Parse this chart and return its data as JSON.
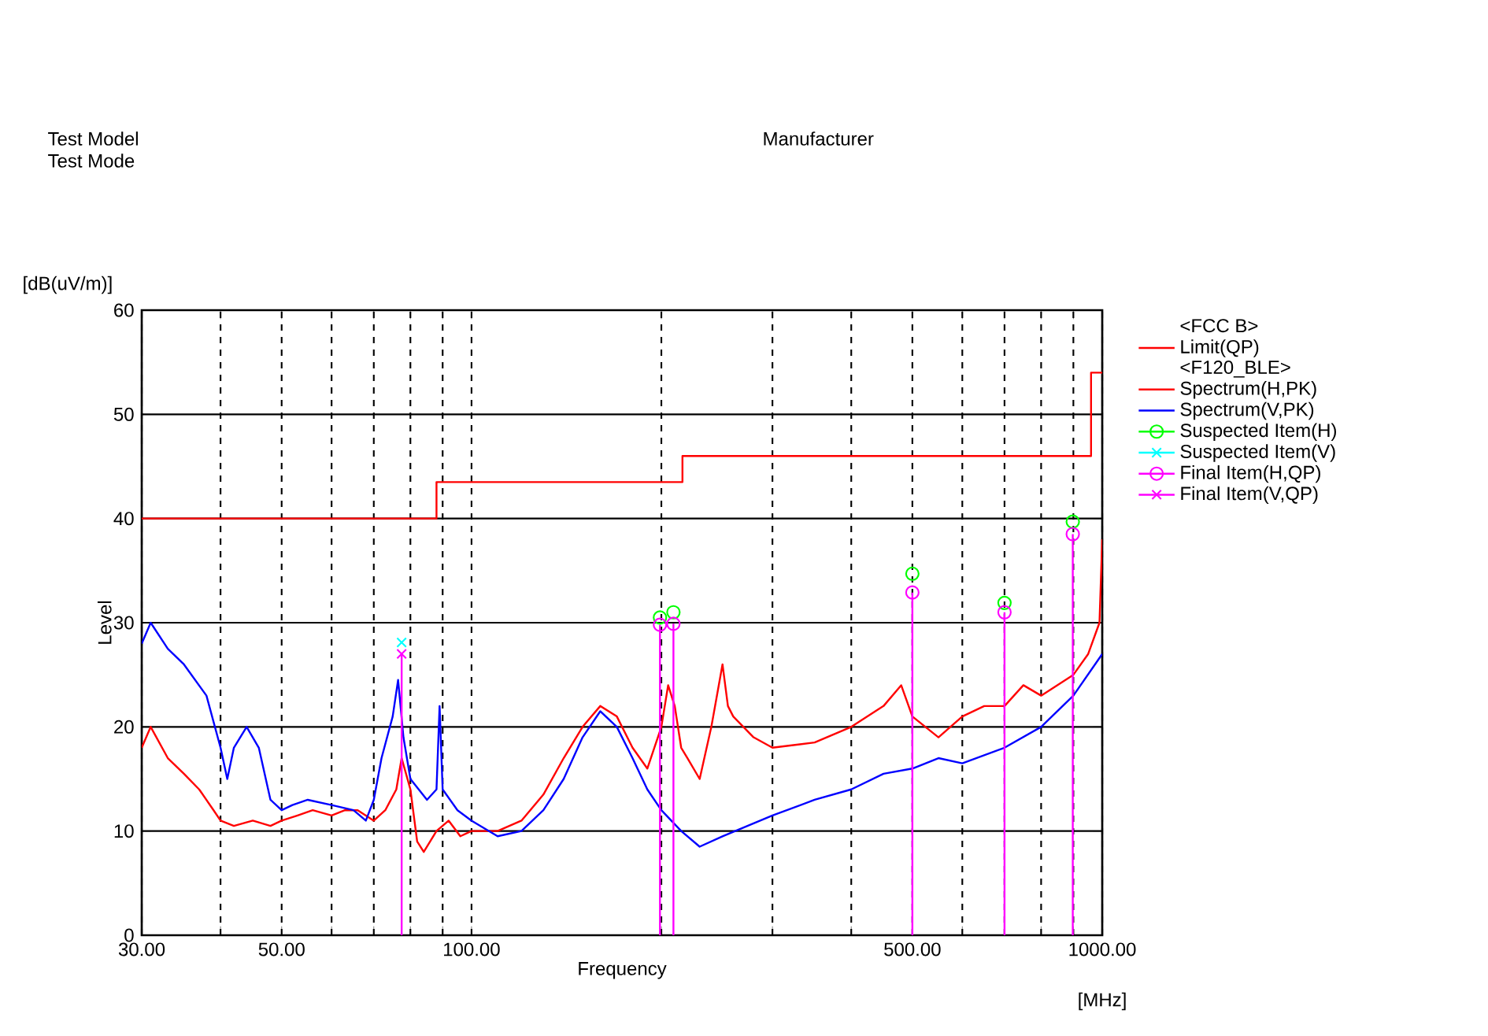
{
  "chart_data": {
    "type": "line",
    "xlabel": "Frequency",
    "ylabel": "Level",
    "log": "x",
    "grid": true,
    "legend": "right",
    "xlim": [
      30,
      1000
    ],
    "ylim": [
      0,
      60
    ],
    "xticks": [
      {
        "value": 30,
        "label": "30.00"
      },
      {
        "value": 40,
        "label": null
      },
      {
        "value": 50,
        "label": "50.00"
      },
      {
        "value": 60,
        "label": null
      },
      {
        "value": 70,
        "label": null
      },
      {
        "value": 80,
        "label": null
      },
      {
        "value": 90,
        "label": null
      },
      {
        "value": 100,
        "label": "100.00"
      },
      {
        "value": 200,
        "label": null
      },
      {
        "value": 300,
        "label": null
      },
      {
        "value": 400,
        "label": null
      },
      {
        "value": 500,
        "label": "500.00"
      },
      {
        "value": 600,
        "label": null
      },
      {
        "value": 700,
        "label": null
      },
      {
        "value": 800,
        "label": null
      },
      {
        "value": 900,
        "label": null
      },
      {
        "value": 1000,
        "label": "1000.00"
      }
    ],
    "yticks": [
      0,
      10,
      20,
      30,
      40,
      50,
      60
    ],
    "annotations": [
      "[dB(uV/m)]",
      "[MHz]",
      "Test Model",
      "Test Mode",
      "Manufacturer",
      "<FCC B>",
      "<F120_BLE>"
    ],
    "series": [
      {
        "name": "Limit(QP)",
        "type": "step",
        "color": "#ff0000",
        "marker": "none",
        "x": [
          30,
          88,
          216,
          960,
          1000
        ],
        "values": [
          40,
          43.5,
          46,
          54,
          54
        ]
      },
      {
        "name": "Spectrum(H,PK)",
        "color": "#ff0000",
        "marker": "none",
        "x": [
          30,
          31,
          33,
          35,
          37,
          39,
          40,
          42,
          45,
          48,
          50,
          53,
          56,
          60,
          63,
          66,
          70,
          73,
          76,
          77.5,
          80,
          82,
          84,
          88,
          92,
          96,
          100,
          110,
          120,
          130,
          140,
          150,
          160,
          170,
          180,
          190,
          200,
          205,
          210,
          215,
          220,
          230,
          240,
          250,
          255,
          260,
          280,
          300,
          350,
          400,
          450,
          480,
          500,
          550,
          600,
          650,
          700,
          750,
          800,
          900,
          950,
          990,
          1000
        ],
        "values": [
          18,
          20,
          17,
          15.5,
          14,
          12,
          11,
          10.5,
          11,
          10.5,
          11,
          11.5,
          12,
          11.5,
          12,
          12,
          11,
          12,
          14,
          17,
          14,
          9,
          8,
          10,
          11,
          9.5,
          10,
          10,
          11,
          13.5,
          17,
          20,
          22,
          21,
          18,
          16,
          20,
          24,
          22,
          18,
          17,
          15,
          20,
          26,
          22,
          21,
          19,
          18,
          18.5,
          20,
          22,
          24,
          21,
          19,
          21,
          22,
          22,
          24,
          23,
          25,
          27,
          30,
          38
        ]
      },
      {
        "name": "Spectrum(V,PK)",
        "color": "#0000ff",
        "marker": "none",
        "x": [
          30,
          31,
          33,
          35,
          38,
          40,
          41,
          42,
          44,
          46,
          48,
          50,
          52,
          55,
          60,
          65,
          68,
          70,
          72,
          75,
          76.5,
          78,
          80,
          85,
          88,
          89,
          90,
          95,
          100,
          110,
          120,
          130,
          140,
          150,
          160,
          170,
          180,
          190,
          200,
          215,
          230,
          250,
          300,
          350,
          400,
          450,
          500,
          550,
          600,
          700,
          800,
          900,
          1000
        ],
        "values": [
          28,
          30,
          27.5,
          26,
          23,
          18,
          15,
          18,
          20,
          18,
          13,
          12,
          12.5,
          13,
          12.5,
          12,
          11,
          13,
          17,
          21,
          24.5,
          19,
          15,
          13,
          14,
          22,
          14,
          12,
          11,
          9.5,
          10,
          12,
          15,
          19,
          21.5,
          20,
          17,
          14,
          12,
          10,
          8.5,
          9.5,
          11.5,
          13,
          14,
          15.5,
          16,
          17,
          16.5,
          18,
          20,
          23,
          27
        ]
      },
      {
        "name": "Suspected Item(H)",
        "type": "scatter",
        "color": "#00ff00",
        "marker": "circle",
        "x": [
          199,
          209,
          500,
          700,
          898
        ],
        "values": [
          30.5,
          31,
          34.7,
          31.9,
          39.7
        ]
      },
      {
        "name": "Suspected Item(V)",
        "type": "scatter",
        "color": "#00ffff",
        "marker": "cross",
        "x": [
          77.5
        ],
        "values": [
          28.1
        ]
      },
      {
        "name": "Final Item(H,QP)",
        "type": "lollipop",
        "color": "#ff00ff",
        "marker": "circle",
        "x": [
          199,
          209,
          500,
          700,
          898
        ],
        "values": [
          29.8,
          29.9,
          32.9,
          31,
          38.5
        ]
      },
      {
        "name": "Final Item(V,QP)",
        "type": "lollipop",
        "color": "#ff00ff",
        "marker": "cross",
        "x": [
          77.5
        ],
        "values": [
          27.0
        ]
      }
    ]
  }
}
